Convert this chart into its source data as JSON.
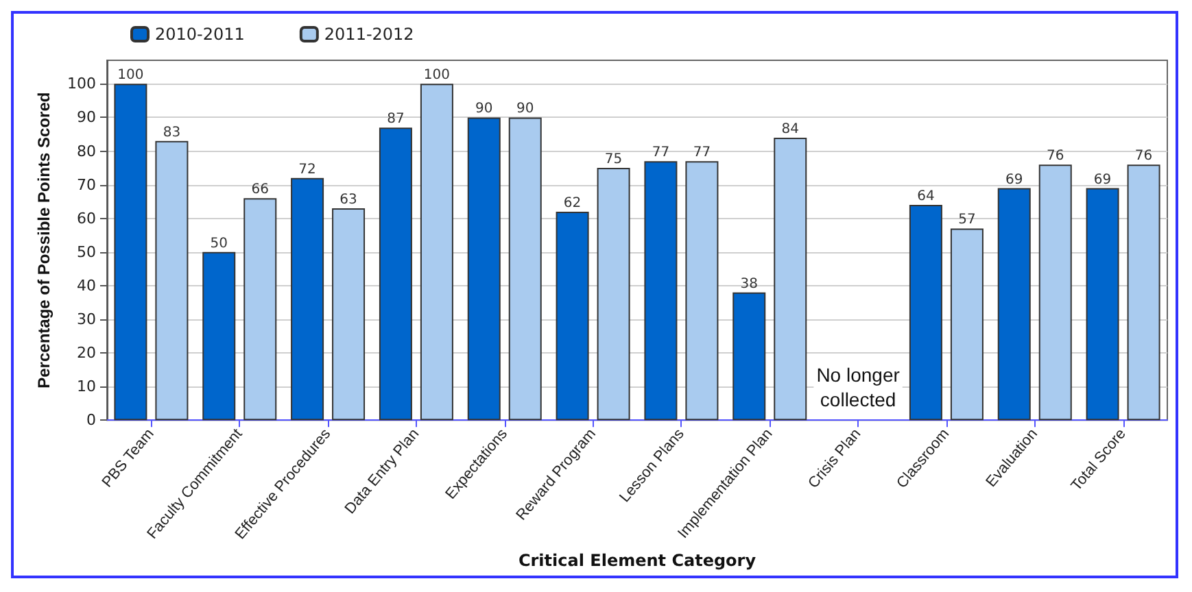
{
  "chart_data": {
    "type": "bar",
    "xlabel": "Critical Element Category",
    "ylabel": "Percentage of Possible Points Scored",
    "categories": [
      "PBS Team",
      "Faculty Commitment",
      "Effective Procedures",
      "Data Entry Plan",
      "Expectations",
      "Reward Program",
      "Lesson Plans",
      "Implementation Plan",
      "Crisis Plan",
      "Classroom",
      "Evaluation",
      "Total Score"
    ],
    "series": [
      {
        "name": "2010-2011",
        "color": "#0066cc",
        "values": [
          100,
          50,
          72,
          87,
          90,
          62,
          77,
          38,
          null,
          64,
          69,
          69
        ]
      },
      {
        "name": "2011-2012",
        "color": "#a9cbef",
        "values": [
          83,
          66,
          63,
          100,
          90,
          75,
          77,
          84,
          null,
          57,
          76,
          76
        ]
      }
    ],
    "ylim": [
      0,
      107
    ],
    "yticks": [
      0,
      10,
      20,
      30,
      40,
      50,
      60,
      70,
      80,
      90,
      100
    ],
    "grid": "y",
    "legend": "top left",
    "data_labels": true,
    "annotations": [
      "No longer\ncollected"
    ]
  }
}
